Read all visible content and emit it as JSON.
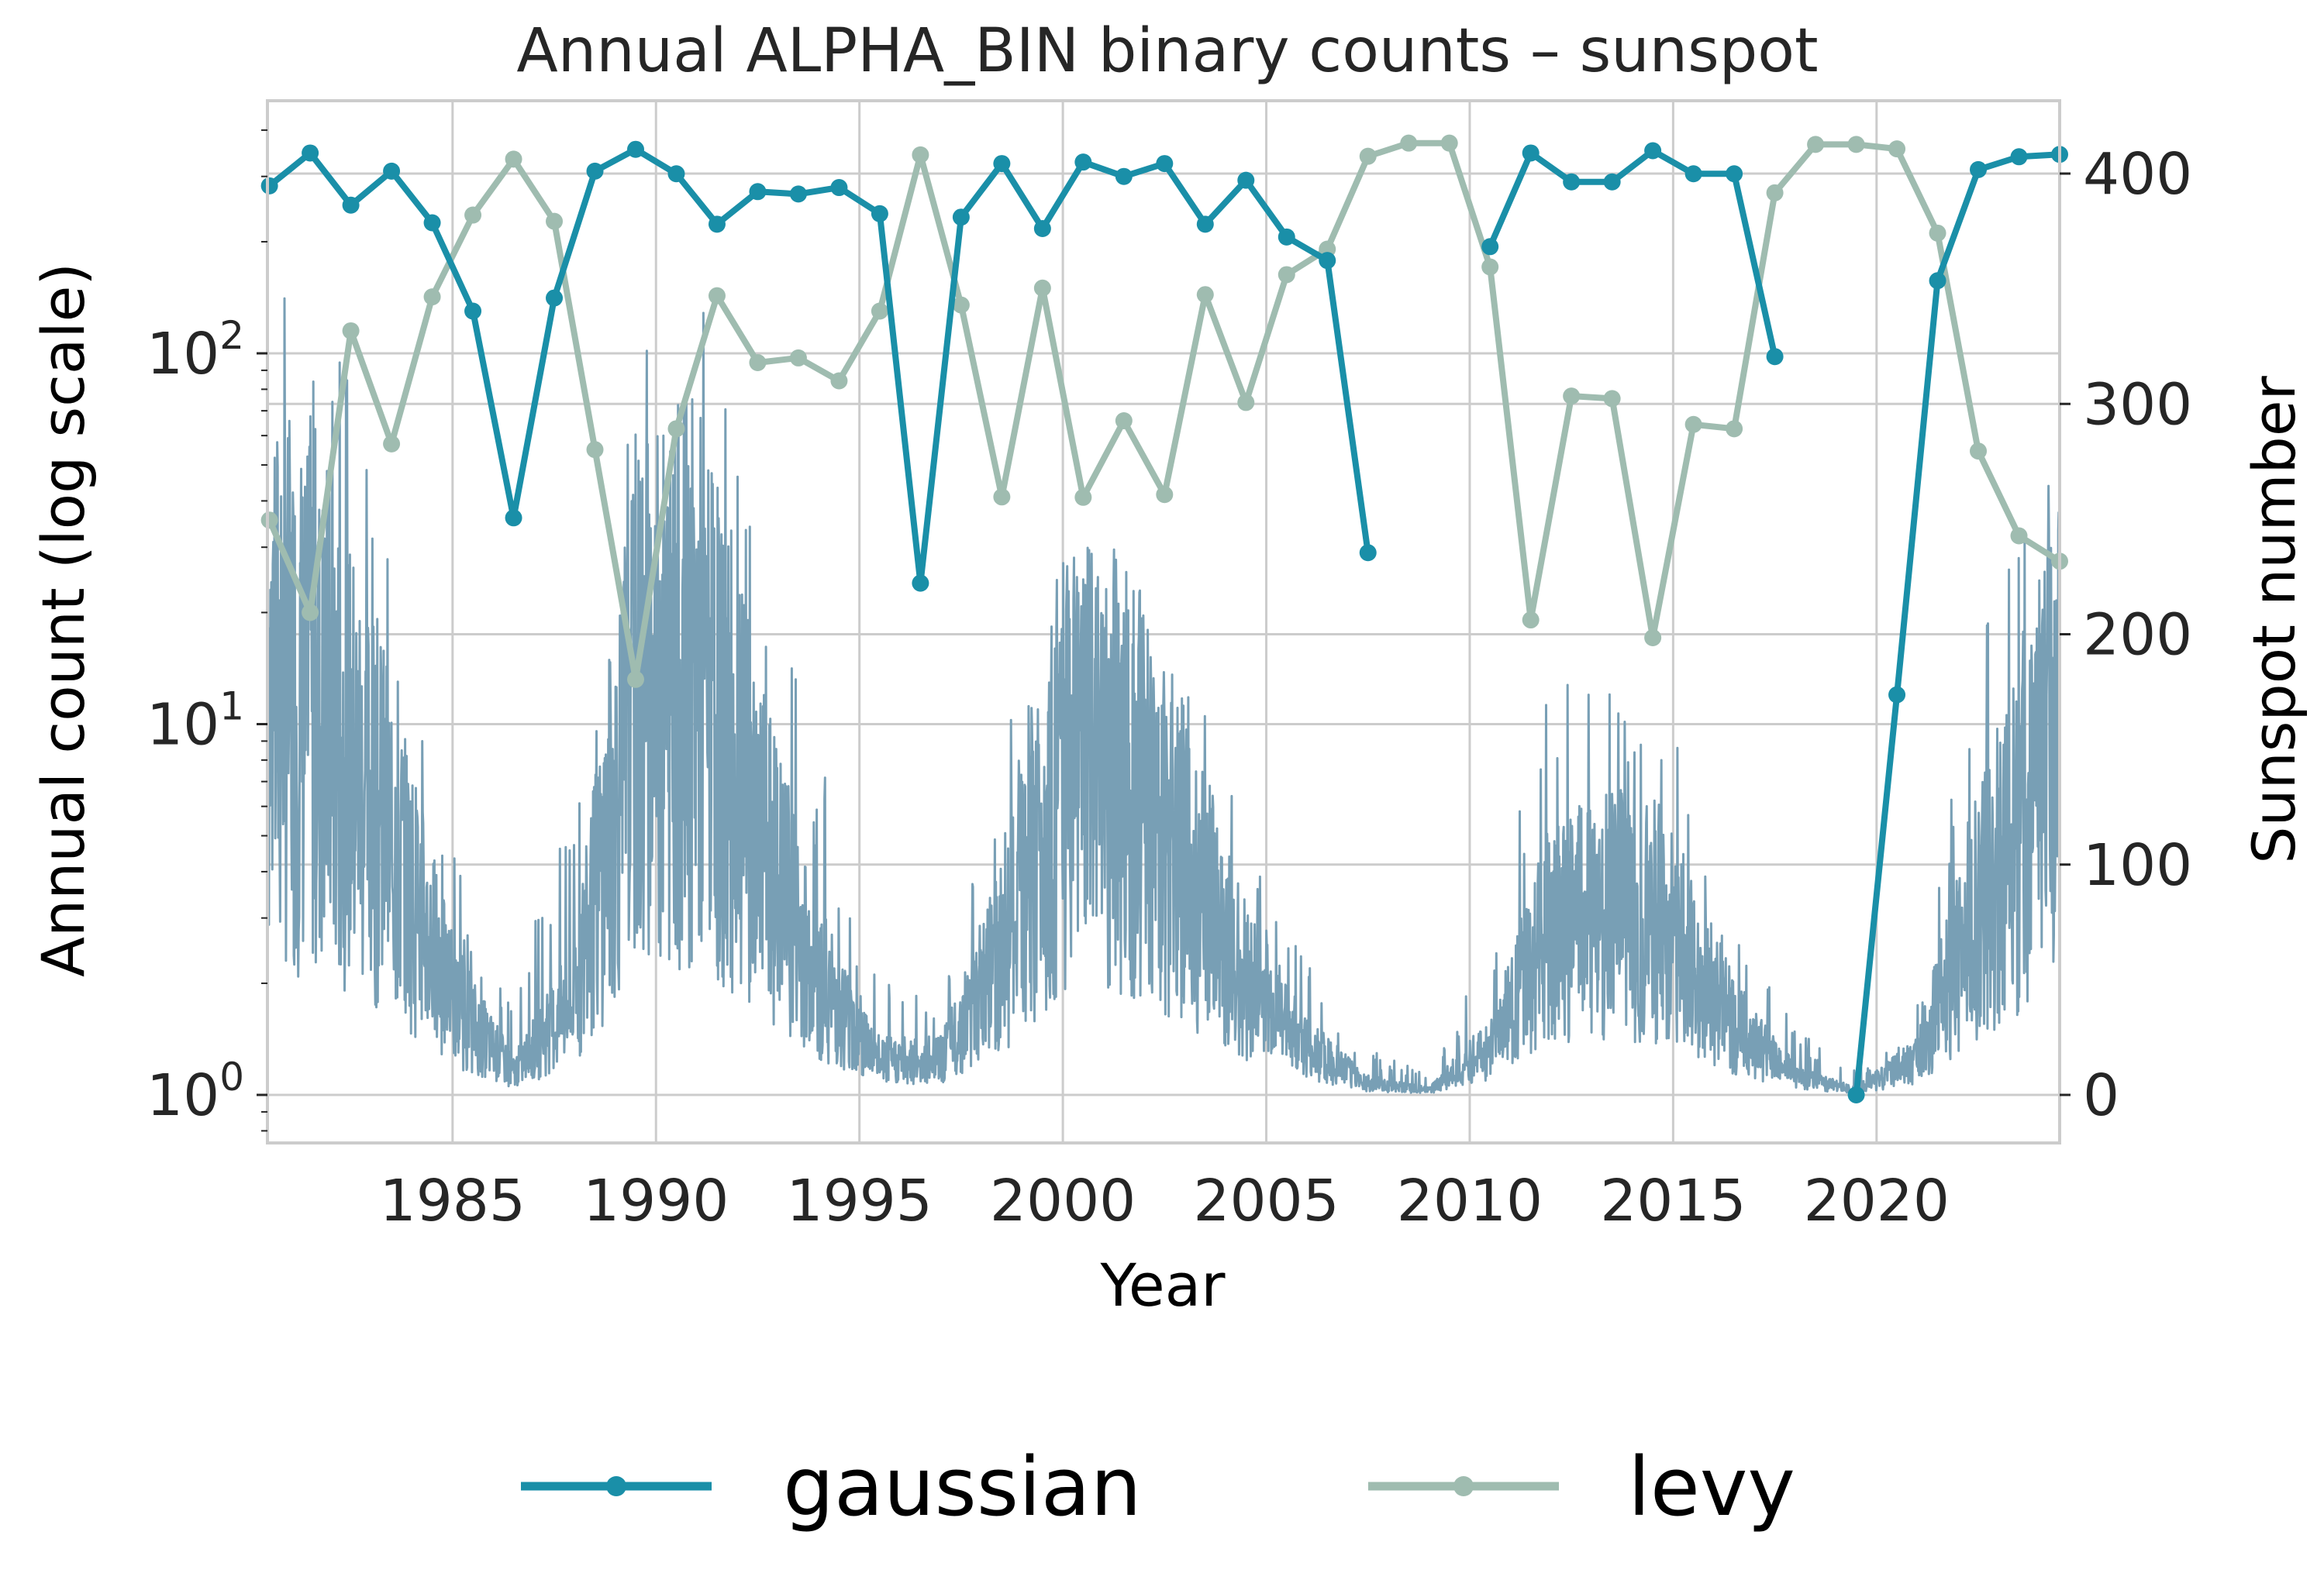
{
  "chart_data": {
    "type": "line",
    "title": "Annual ALPHA_BIN binary counts – sunspot",
    "xlabel": "Year",
    "ylabel": "Annual count (log scale)",
    "ylabel_right": "Sunspot number",
    "x_ticks": [
      "1985",
      "1990",
      "1995",
      "2000",
      "2005",
      "2010",
      "2015",
      "2020"
    ],
    "y_ticks_left": [
      "10^0",
      "10^1",
      "10^2"
    ],
    "y_ticks_right": [
      "0",
      "100",
      "200",
      "300",
      "400"
    ],
    "xlim": [
      1980.45,
      2024.5
    ],
    "ylim_left_log10": [
      -0.11,
      2.7
    ],
    "ylim_right": [
      -22,
      430
    ],
    "yscale_left": "log",
    "grid": true,
    "legend_position": "bottom-center-outside",
    "x": [
      1980.5,
      1981.5,
      1982.5,
      1983.5,
      1984.5,
      1985.5,
      1986.5,
      1987.5,
      1988.5,
      1989.5,
      1990.5,
      1991.5,
      1992.5,
      1993.5,
      1994.5,
      1995.5,
      1996.5,
      1997.5,
      1998.5,
      1999.5,
      2000.5,
      2001.5,
      2002.5,
      2003.5,
      2004.5,
      2005.5,
      2006.5,
      2007.5,
      2008.5,
      2009.5,
      2010.5,
      2011.5,
      2012.5,
      2013.5,
      2014.5,
      2015.5,
      2016.5,
      2017.5,
      2018.5,
      2019.5,
      2020.5,
      2021.5,
      2022.5,
      2023.5,
      2024.5
    ],
    "series": [
      {
        "name": "gaussian",
        "axis": "left",
        "color": "#1a8fa8",
        "marker": "o",
        "values": [
          283,
          347,
          251,
          310,
          225,
          130,
          36,
          141,
          310,
          355,
          305,
          223,
          273,
          269,
          280,
          238,
          24,
          233,
          325,
          217,
          328,
          300,
          325,
          223,
          293,
          206,
          178,
          29,
          null,
          null,
          194,
          347,
          290,
          290,
          352,
          305,
          305,
          98,
          null,
          1,
          12,
          157,
          313,
          339,
          344
        ]
      },
      {
        "name": "levy",
        "axis": "left",
        "color": "#9fbcb0",
        "marker": "o",
        "values": [
          35.5,
          20,
          115,
          57,
          142,
          236,
          334,
          227,
          55,
          13.2,
          62.6,
          143,
          94.4,
          97.2,
          84.3,
          130,
          343,
          135,
          41,
          150,
          40.9,
          65.8,
          41.6,
          144,
          73.7,
          163,
          191,
          340,
          369,
          369,
          171,
          19.1,
          76.7,
          75.5,
          17.1,
          64.3,
          62.6,
          271,
          366,
          366,
          356,
          211,
          54.5,
          32.2,
          27.5
        ]
      },
      {
        "name": "sunspot",
        "axis": "right",
        "color": "#789fb5",
        "marker": "none",
        "style": "daily noisy line",
        "envelope_years": [
          1980.5,
          1982,
          1983.5,
          1985,
          1986.5,
          1988,
          1989.5,
          1991,
          1992.5,
          1994,
          1995.5,
          1997,
          1998.5,
          2000,
          2001.5,
          2003,
          2004.5,
          2006,
          2007.5,
          2009,
          2010.5,
          2012,
          2013.5,
          2015,
          2016.5,
          2018,
          2019.5,
          2021,
          2022.5,
          2024.5
        ],
        "envelope_max": [
          355,
          360,
          250,
          110,
          40,
          140,
          330,
          370,
          250,
          150,
          50,
          40,
          150,
          260,
          240,
          200,
          120,
          60,
          20,
          10,
          70,
          180,
          180,
          170,
          70,
          30,
          10,
          40,
          200,
          290
        ],
        "envelope_typical": [
          180,
          160,
          110,
          40,
          10,
          40,
          170,
          180,
          110,
          50,
          15,
          15,
          60,
          140,
          140,
          100,
          50,
          20,
          5,
          2,
          20,
          70,
          80,
          70,
          30,
          8,
          2,
          15,
          80,
          150
        ]
      }
    ]
  },
  "legend": {
    "items": [
      {
        "label": "gaussian",
        "color": "#1a8fa8"
      },
      {
        "label": "levy",
        "color": "#9fbcb0"
      }
    ]
  }
}
